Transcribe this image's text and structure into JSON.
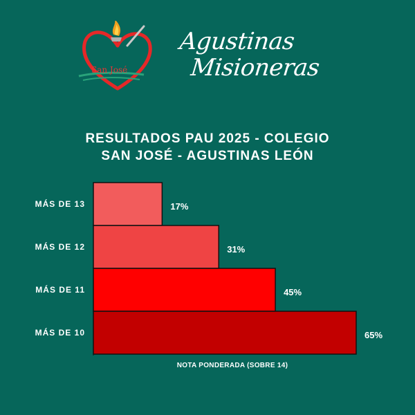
{
  "logo": {
    "caption": "San José",
    "brand_line_1": "Agustinas",
    "brand_line_2": "Misioneras"
  },
  "title_line_1": "RESULTADOS PAU 2025 - COLEGIO",
  "title_line_2": "SAN JOSÉ - AGUSTINAS LEÓN",
  "chart_data": {
    "type": "bar",
    "orientation": "horizontal",
    "title": "RESULTADOS PAU 2025 - COLEGIO SAN JOSÉ - AGUSTINAS LEÓN",
    "xlabel": "NOTA PONDERADA (SOBRE 14)",
    "ylabel": "",
    "categories": [
      "MÁS DE 13",
      "MÁS DE 12",
      "MÁS DE 11",
      "MÁS DE 10"
    ],
    "values": [
      17,
      31,
      45,
      65
    ],
    "value_labels": [
      "17%",
      "31%",
      "45%",
      "65%"
    ],
    "unit": "%",
    "xlim": [
      0,
      65
    ],
    "grid": false,
    "legend": "none",
    "colors": [
      "#f25c5c",
      "#ef4444",
      "#ff0000",
      "#c20000"
    ]
  }
}
